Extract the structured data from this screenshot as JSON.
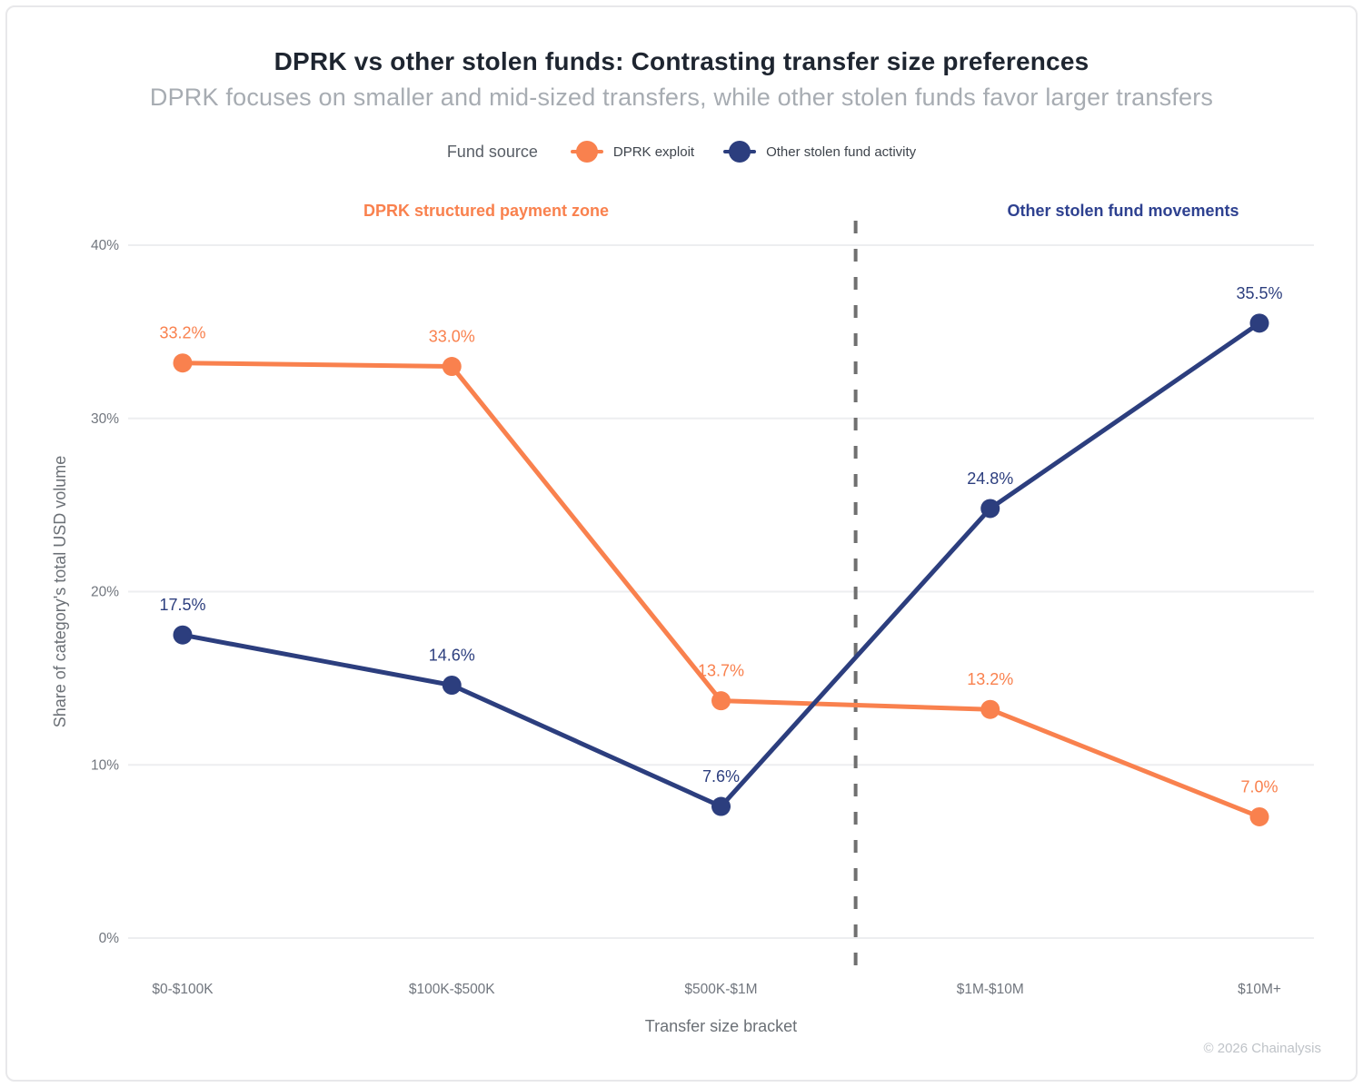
{
  "header": {
    "title": "DPRK vs other stolen funds: Contrasting transfer size preferences",
    "subtitle": "DPRK focuses on smaller and mid-sized transfers, while other stolen funds favor larger transfers"
  },
  "legend": {
    "label": "Fund source",
    "items": [
      {
        "label": "DPRK exploit",
        "color": "#f9814e"
      },
      {
        "label": "Other stolen fund activity",
        "color": "#2c3e7e"
      }
    ]
  },
  "annotations": {
    "zones": [
      {
        "label": "DPRK structured payment zone",
        "color": "#f9814e"
      },
      {
        "label": "Other stolen fund movements",
        "color": "#2e4190"
      }
    ]
  },
  "chart_data": {
    "type": "line",
    "title": "DPRK vs other stolen funds: Contrasting transfer size preferences",
    "categories": [
      "$0-$100K",
      "$100K-$500K",
      "$500K-$1M",
      "$1M-$10M",
      "$10M+"
    ],
    "series": [
      {
        "name": "DPRK exploit",
        "color": "#f9814e",
        "values": [
          33.2,
          33.0,
          13.7,
          13.2,
          7.0
        ]
      },
      {
        "name": "Other stolen fund activity",
        "color": "#2c3e7e",
        "values": [
          17.5,
          14.6,
          7.6,
          24.8,
          35.5
        ]
      }
    ],
    "xlabel": "Transfer size bracket",
    "ylabel": "Share of category's total USD volume",
    "ylim": [
      0,
      40
    ],
    "yticks": [
      "0%",
      "10%",
      "20%",
      "30%",
      "40%"
    ],
    "grid": "horizontal",
    "legend_position": "top-center",
    "divider": {
      "between_categories": [
        "$500K-$1M",
        "$1M-$10M"
      ],
      "style": "dashed",
      "color": "#707070"
    },
    "point_label_format": "{value}%"
  },
  "footer": {
    "copyright": "© 2026 Chainalysis"
  }
}
